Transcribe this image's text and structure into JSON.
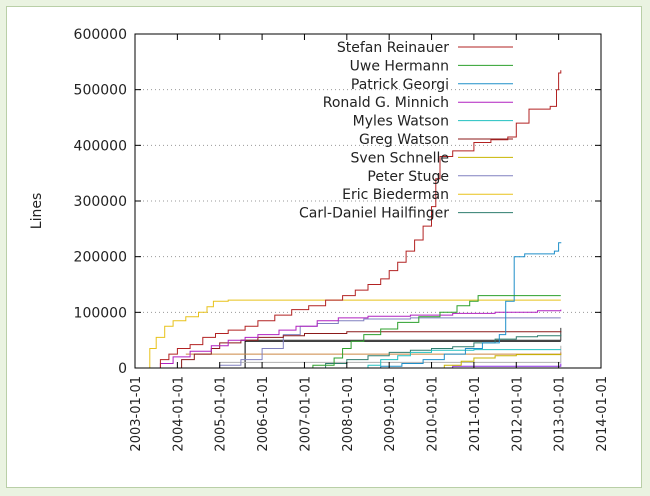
{
  "chart_data": {
    "type": "line",
    "title": "",
    "xlabel": "",
    "ylabel": "Lines",
    "ylim": [
      0,
      600000
    ],
    "xlim": [
      2003.0,
      2014.0
    ],
    "yticks": [
      0,
      100000,
      200000,
      300000,
      400000,
      500000,
      600000
    ],
    "ytick_labels": [
      "0",
      "100000",
      "200000",
      "300000",
      "400000",
      "500000",
      "600000"
    ],
    "xticks": [
      2003,
      2004,
      2005,
      2006,
      2007,
      2008,
      2009,
      2010,
      2011,
      2012,
      2013,
      2014
    ],
    "xtick_labels": [
      "2003-01-01",
      "2004-01-01",
      "2005-01-01",
      "2006-01-01",
      "2007-01-01",
      "2008-01-01",
      "2009-01-01",
      "2010-01-01",
      "2011-01-01",
      "2012-01-01",
      "2013-01-01",
      "2014-01-01"
    ],
    "grid": "horizontal dotted",
    "legend_position": "top-center",
    "series": [
      {
        "name": "Stefan Reinauer",
        "color": "#b22222",
        "points": [
          [
            2003.45,
            0
          ],
          [
            2003.6,
            15000
          ],
          [
            2003.8,
            25000
          ],
          [
            2004.0,
            35000
          ],
          [
            2004.3,
            42000
          ],
          [
            2004.6,
            55000
          ],
          [
            2004.9,
            62000
          ],
          [
            2005.2,
            68000
          ],
          [
            2005.6,
            75000
          ],
          [
            2005.9,
            85000
          ],
          [
            2006.3,
            95000
          ],
          [
            2006.7,
            105000
          ],
          [
            2007.1,
            112000
          ],
          [
            2007.5,
            122000
          ],
          [
            2007.9,
            130000
          ],
          [
            2008.2,
            140000
          ],
          [
            2008.5,
            150000
          ],
          [
            2008.8,
            160000
          ],
          [
            2009.0,
            175000
          ],
          [
            2009.2,
            190000
          ],
          [
            2009.4,
            210000
          ],
          [
            2009.6,
            230000
          ],
          [
            2009.8,
            255000
          ],
          [
            2010.0,
            290000
          ],
          [
            2010.1,
            340000
          ],
          [
            2010.2,
            380000
          ],
          [
            2010.5,
            390000
          ],
          [
            2011.0,
            405000
          ],
          [
            2011.4,
            410000
          ],
          [
            2011.8,
            415000
          ],
          [
            2012.0,
            440000
          ],
          [
            2012.3,
            465000
          ],
          [
            2012.8,
            470000
          ],
          [
            2012.95,
            500000
          ],
          [
            2013.0,
            530000
          ],
          [
            2013.05,
            535000
          ]
        ]
      },
      {
        "name": "Uwe Hermann",
        "color": "#2ca02c",
        "points": [
          [
            2006.8,
            0
          ],
          [
            2007.2,
            5000
          ],
          [
            2007.7,
            18000
          ],
          [
            2007.9,
            35000
          ],
          [
            2008.1,
            48000
          ],
          [
            2008.4,
            60000
          ],
          [
            2008.8,
            70000
          ],
          [
            2009.2,
            82000
          ],
          [
            2009.7,
            92000
          ],
          [
            2010.2,
            100000
          ],
          [
            2010.6,
            112000
          ],
          [
            2010.9,
            120000
          ],
          [
            2011.1,
            130000
          ],
          [
            2013.05,
            130000
          ]
        ]
      },
      {
        "name": "Patrick Georgi",
        "color": "#1f8fc9",
        "points": [
          [
            2008.4,
            0
          ],
          [
            2008.8,
            3000
          ],
          [
            2009.3,
            8000
          ],
          [
            2009.8,
            15000
          ],
          [
            2010.3,
            25000
          ],
          [
            2010.8,
            35000
          ],
          [
            2011.2,
            45000
          ],
          [
            2011.6,
            60000
          ],
          [
            2011.75,
            120000
          ],
          [
            2011.95,
            200000
          ],
          [
            2012.2,
            205000
          ],
          [
            2012.9,
            210000
          ],
          [
            2013.0,
            225000
          ],
          [
            2013.05,
            226000
          ]
        ]
      },
      {
        "name": "Ronald G. Minnich",
        "color": "#b020c0",
        "points": [
          [
            2003.4,
            0
          ],
          [
            2003.6,
            8000
          ],
          [
            2003.9,
            20000
          ],
          [
            2004.3,
            30000
          ],
          [
            2004.8,
            40000
          ],
          [
            2005.2,
            50000
          ],
          [
            2005.6,
            55000
          ],
          [
            2005.9,
            60000
          ],
          [
            2006.4,
            68000
          ],
          [
            2006.8,
            75000
          ],
          [
            2007.3,
            85000
          ],
          [
            2007.8,
            90000
          ],
          [
            2008.5,
            93000
          ],
          [
            2009.5,
            95000
          ],
          [
            2010.5,
            98000
          ],
          [
            2011.5,
            100000
          ],
          [
            2012.5,
            103000
          ],
          [
            2013.05,
            105000
          ]
        ]
      },
      {
        "name": "Myles Watson",
        "color": "#20c0c0",
        "points": [
          [
            2008.2,
            0
          ],
          [
            2008.5,
            5000
          ],
          [
            2008.8,
            15000
          ],
          [
            2009.2,
            22000
          ],
          [
            2009.5,
            28000
          ],
          [
            2010.0,
            32000
          ],
          [
            2011.0,
            33000
          ],
          [
            2013.05,
            33000
          ]
        ]
      },
      {
        "name": "Greg Watson",
        "color": "#8b1a1a",
        "points": [
          [
            2003.9,
            0
          ],
          [
            2004.1,
            15000
          ],
          [
            2004.4,
            25000
          ],
          [
            2004.8,
            35000
          ],
          [
            2005.0,
            45000
          ],
          [
            2005.5,
            50000
          ],
          [
            2005.9,
            55000
          ],
          [
            2006.5,
            58000
          ],
          [
            2007.0,
            62000
          ],
          [
            2008.0,
            65000
          ],
          [
            2013.05,
            66000
          ]
        ]
      },
      {
        "name": "Sven Schnelle",
        "color": "#c8b400",
        "points": [
          [
            2009.9,
            0
          ],
          [
            2010.3,
            5000
          ],
          [
            2010.7,
            12000
          ],
          [
            2011.0,
            18000
          ],
          [
            2011.5,
            22000
          ],
          [
            2012.0,
            24000
          ],
          [
            2013.05,
            25000
          ]
        ]
      },
      {
        "name": "Peter Stuge",
        "color": "#8080c0",
        "points": [
          [
            2004.7,
            0
          ],
          [
            2005.0,
            5000
          ],
          [
            2005.5,
            15000
          ],
          [
            2006.0,
            35000
          ],
          [
            2006.5,
            60000
          ],
          [
            2006.9,
            75000
          ],
          [
            2007.3,
            80000
          ],
          [
            2007.8,
            85000
          ],
          [
            2008.4,
            88000
          ],
          [
            2009.5,
            90000
          ],
          [
            2013.05,
            90000
          ]
        ]
      },
      {
        "name": "Eric Biederman",
        "color": "#e8c21a",
        "points": [
          [
            2003.3,
            0
          ],
          [
            2003.35,
            35000
          ],
          [
            2003.5,
            55000
          ],
          [
            2003.7,
            75000
          ],
          [
            2003.9,
            85000
          ],
          [
            2004.2,
            92000
          ],
          [
            2004.5,
            100000
          ],
          [
            2004.7,
            110000
          ],
          [
            2004.85,
            120000
          ],
          [
            2005.2,
            122000
          ],
          [
            2013.05,
            122000
          ]
        ]
      },
      {
        "name": "Carl-Daniel Hailfinger",
        "color": "#2e7d6e",
        "points": [
          [
            2007.1,
            0
          ],
          [
            2007.5,
            8000
          ],
          [
            2008.0,
            15000
          ],
          [
            2008.5,
            22000
          ],
          [
            2009.0,
            28000
          ],
          [
            2009.5,
            32000
          ],
          [
            2010.0,
            35000
          ],
          [
            2010.5,
            38000
          ],
          [
            2011.0,
            45000
          ],
          [
            2011.5,
            52000
          ],
          [
            2012.0,
            56000
          ],
          [
            2012.5,
            58000
          ],
          [
            2013.05,
            60000
          ]
        ]
      }
    ],
    "extra_series": [
      {
        "color": "#000000",
        "points": [
          [
            2005.6,
            0
          ],
          [
            2005.6,
            48000
          ],
          [
            2013.05,
            48000
          ]
        ]
      },
      {
        "color": "#333333",
        "points": [
          [
            2005.5,
            50000
          ],
          [
            2013.05,
            72000
          ]
        ]
      },
      {
        "color": "#b0b0b0",
        "points": [
          [
            2005.0,
            10000
          ],
          [
            2013.05,
            40000
          ]
        ]
      },
      {
        "color": "#cc8844",
        "points": [
          [
            2004.2,
            25000
          ],
          [
            2013.05,
            28000
          ]
        ]
      },
      {
        "color": "#8a2be2",
        "points": [
          [
            2009.6,
            0
          ],
          [
            2010.5,
            3000
          ],
          [
            2013.05,
            8000
          ]
        ]
      }
    ]
  }
}
